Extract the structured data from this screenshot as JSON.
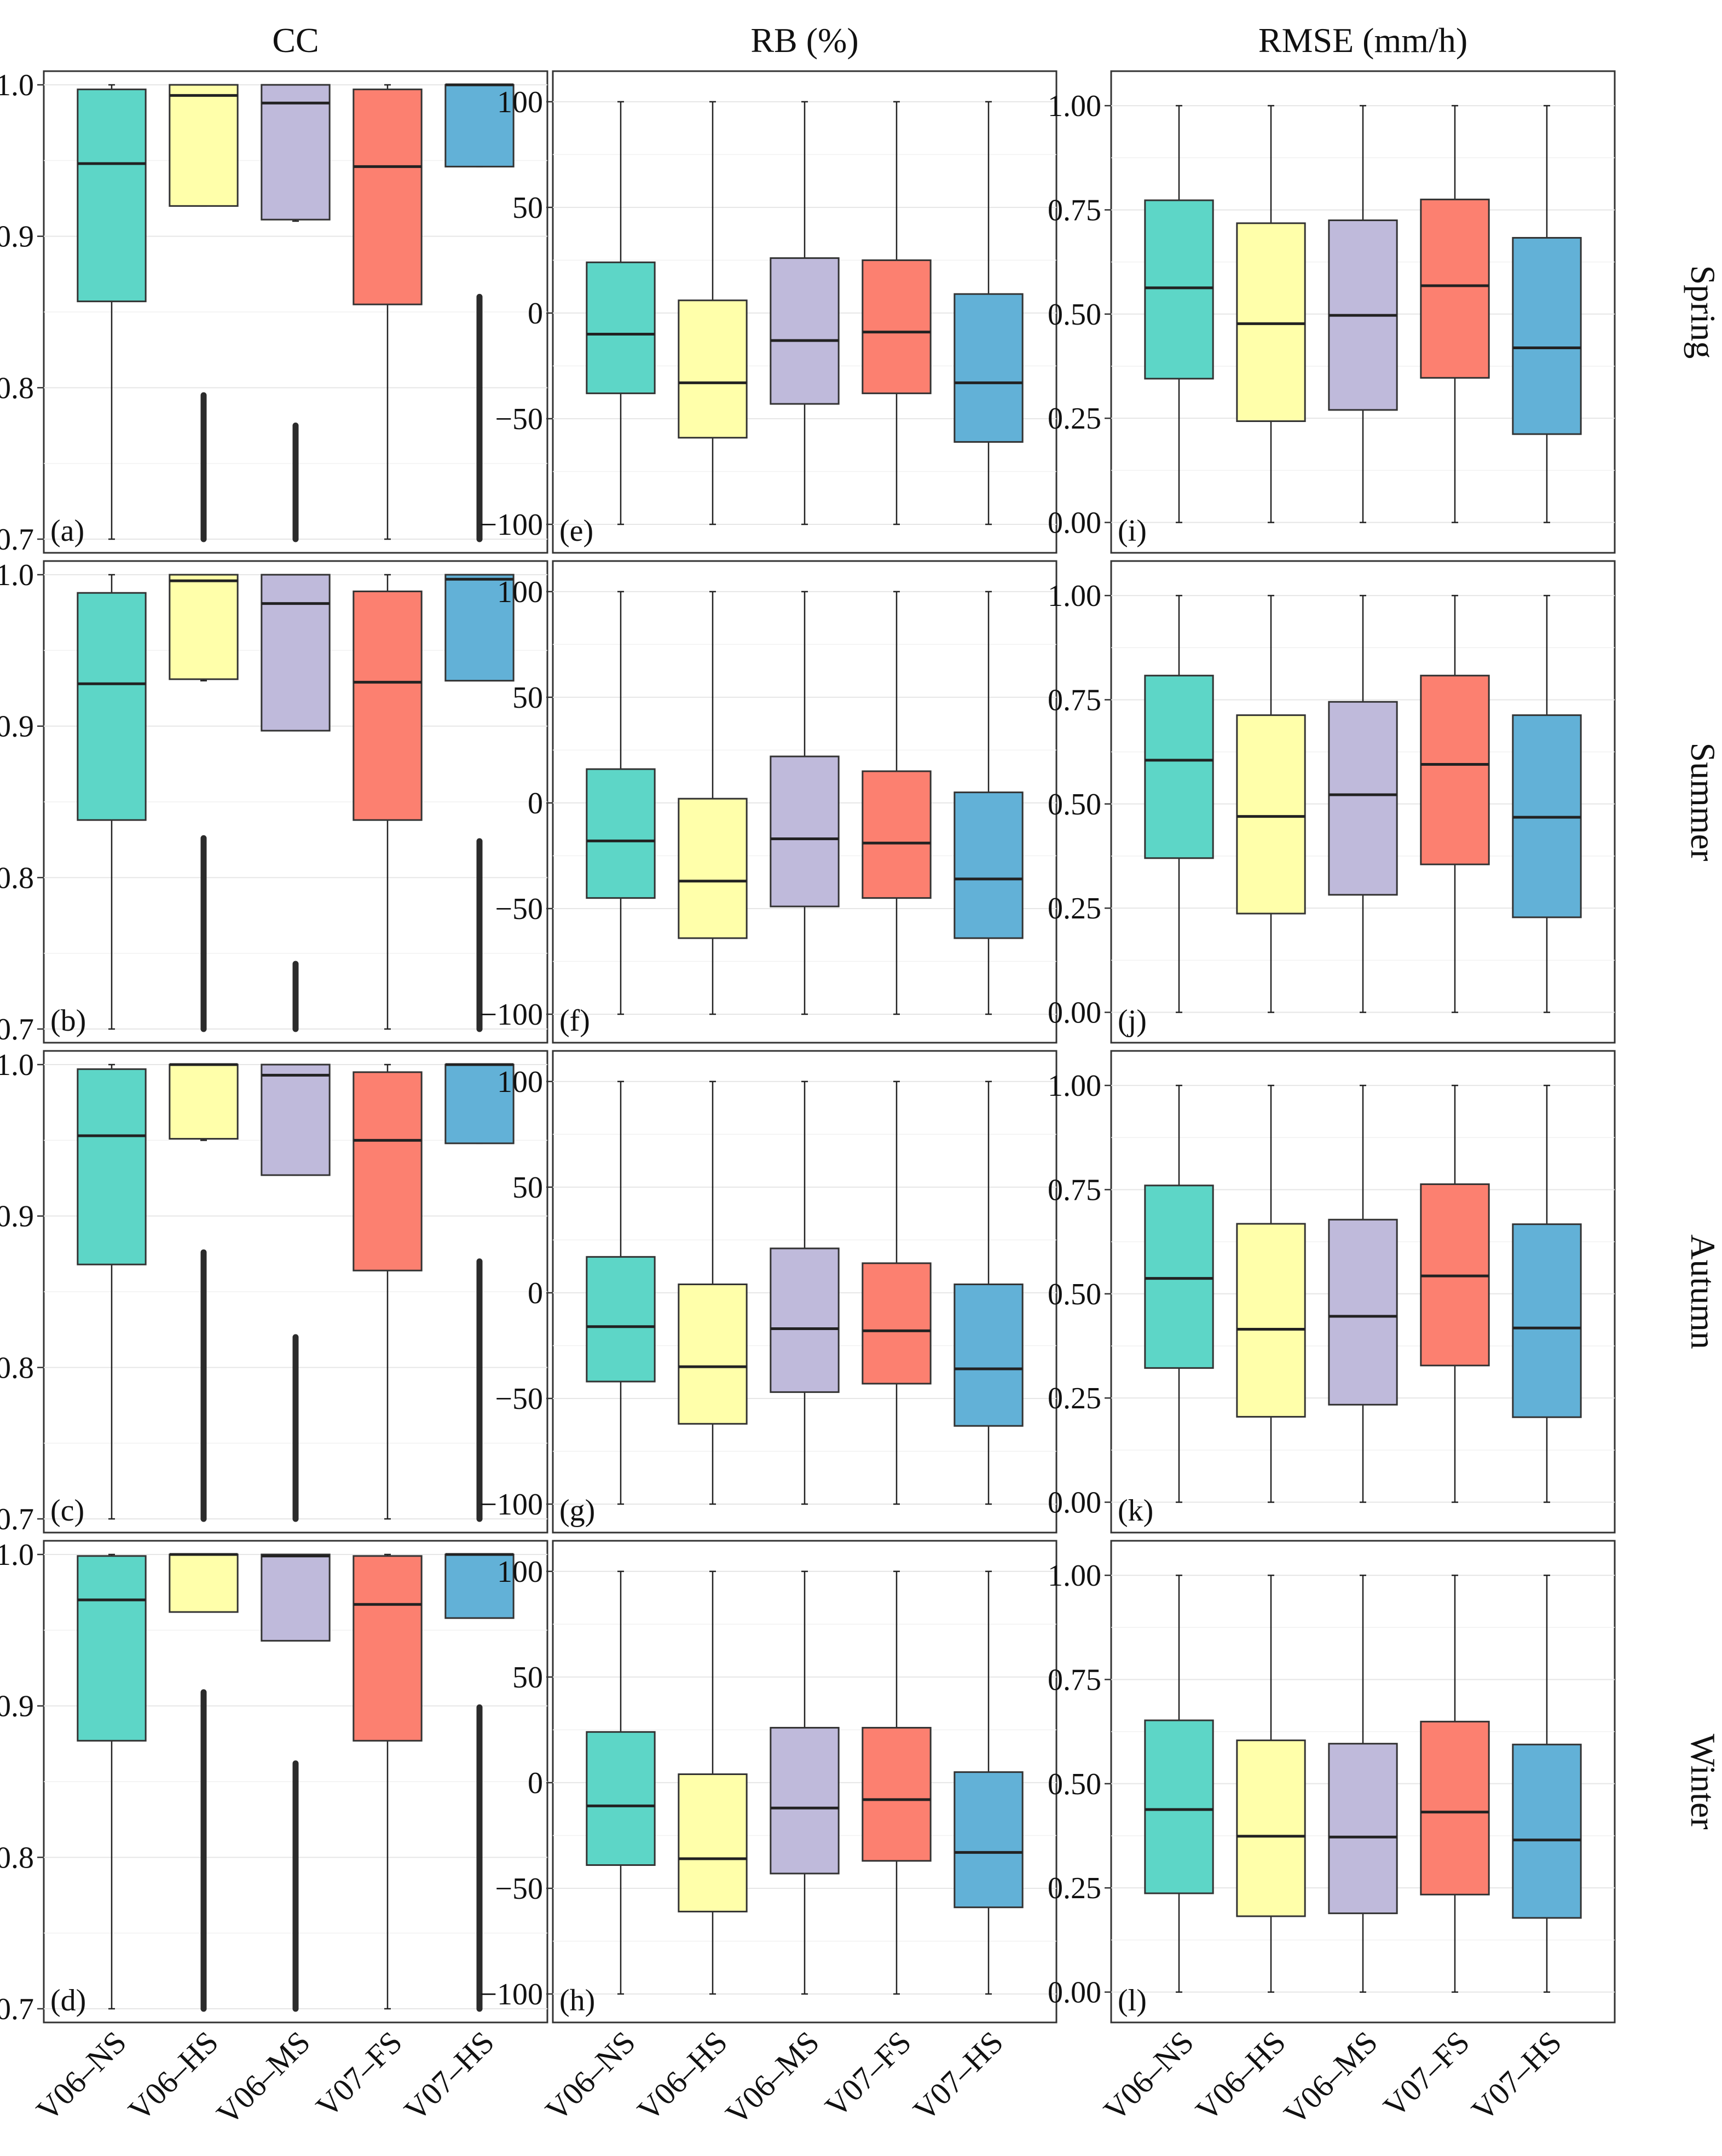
{
  "chart_data": {
    "type": "boxplot-grid",
    "categories": [
      "V06–NS",
      "V06–HS",
      "V06–MS",
      "V07–FS",
      "V07–HS"
    ],
    "category_colors": [
      "#5dd6c7",
      "#ffffaa",
      "#bfbadb",
      "#fc8070",
      "#62b1d7"
    ],
    "seasons": [
      "Spring",
      "Summer",
      "Autumn",
      "Winter"
    ],
    "metrics": [
      {
        "key": "CC",
        "title": "CC",
        "ylim": [
          0.7,
          1.0
        ],
        "ticks": [
          0.7,
          0.8,
          0.9,
          1.0
        ],
        "tick_labels": [
          "0.7",
          "0.8",
          "0.9",
          "1.0"
        ],
        "panels": [
          {
            "tag": "(a)",
            "season": "Spring",
            "boxes": [
              {
                "min": 0.7,
                "q1": 0.857,
                "median": 0.948,
                "q3": 0.997,
                "max": 1.0,
                "outlier_low": null
              },
              {
                "min": 0.92,
                "q1": 0.92,
                "median": 0.993,
                "q3": 1.0,
                "max": 1.0,
                "outlier_low": 0.7,
                "outlier_high": 0.795
              },
              {
                "min": 0.91,
                "q1": 0.911,
                "median": 0.988,
                "q3": 1.0,
                "max": 1.0,
                "outlier_low": 0.7,
                "outlier_high": 0.775
              },
              {
                "min": 0.7,
                "q1": 0.855,
                "median": 0.946,
                "q3": 0.997,
                "max": 1.0,
                "outlier_low": null
              },
              {
                "min": 0.946,
                "q1": 0.946,
                "median": 1.0,
                "q3": 1.0,
                "max": 1.0,
                "outlier_low": 0.7,
                "outlier_high": 0.86
              }
            ]
          },
          {
            "tag": "(b)",
            "season": "Summer",
            "boxes": [
              {
                "min": 0.7,
                "q1": 0.838,
                "median": 0.928,
                "q3": 0.988,
                "max": 1.0,
                "outlier_low": null
              },
              {
                "min": 0.93,
                "q1": 0.931,
                "median": 0.996,
                "q3": 1.0,
                "max": 1.0,
                "outlier_low": 0.7,
                "outlier_high": 0.826
              },
              {
                "min": 0.897,
                "q1": 0.897,
                "median": 0.981,
                "q3": 1.0,
                "max": 1.0,
                "outlier_low": 0.7,
                "outlier_high": 0.743
              },
              {
                "min": 0.7,
                "q1": 0.838,
                "median": 0.929,
                "q3": 0.989,
                "max": 1.0,
                "outlier_low": null
              },
              {
                "min": 0.93,
                "q1": 0.93,
                "median": 0.997,
                "q3": 1.0,
                "max": 1.0,
                "outlier_low": 0.7,
                "outlier_high": 0.824
              }
            ]
          },
          {
            "tag": "(c)",
            "season": "Autumn",
            "boxes": [
              {
                "min": 0.7,
                "q1": 0.868,
                "median": 0.953,
                "q3": 0.997,
                "max": 1.0,
                "outlier_low": null
              },
              {
                "min": 0.95,
                "q1": 0.951,
                "median": 1.0,
                "q3": 1.0,
                "max": 1.0,
                "outlier_low": 0.7,
                "outlier_high": 0.876
              },
              {
                "min": 0.927,
                "q1": 0.927,
                "median": 0.993,
                "q3": 1.0,
                "max": 1.0,
                "outlier_low": 0.7,
                "outlier_high": 0.82
              },
              {
                "min": 0.7,
                "q1": 0.864,
                "median": 0.95,
                "q3": 0.995,
                "max": 1.0,
                "outlier_low": null
              },
              {
                "min": 0.948,
                "q1": 0.948,
                "median": 1.0,
                "q3": 1.0,
                "max": 1.0,
                "outlier_low": 0.7,
                "outlier_high": 0.87
              }
            ]
          },
          {
            "tag": "(d)",
            "season": "Winter",
            "boxes": [
              {
                "min": 0.7,
                "q1": 0.877,
                "median": 0.97,
                "q3": 0.999,
                "max": 1.0,
                "outlier_low": null
              },
              {
                "min": 0.962,
                "q1": 0.962,
                "median": 1.0,
                "q3": 1.0,
                "max": 1.0,
                "outlier_low": 0.7,
                "outlier_high": 0.909
              },
              {
                "min": 0.943,
                "q1": 0.943,
                "median": 0.999,
                "q3": 1.0,
                "max": 1.0,
                "outlier_low": 0.7,
                "outlier_high": 0.862
              },
              {
                "min": 0.7,
                "q1": 0.877,
                "median": 0.967,
                "q3": 0.999,
                "max": 1.0,
                "outlier_low": null
              },
              {
                "min": 0.958,
                "q1": 0.958,
                "median": 1.0,
                "q3": 1.0,
                "max": 1.0,
                "outlier_low": 0.7,
                "outlier_high": 0.899
              }
            ]
          }
        ]
      },
      {
        "key": "RB",
        "title": "RB (%)",
        "ylim": [
          -107,
          108
        ],
        "ticks": [
          -100,
          -50,
          0,
          50,
          100
        ],
        "tick_labels": [
          "−100",
          "−50",
          "0",
          "50",
          "100"
        ],
        "panels": [
          {
            "tag": "(e)",
            "season": "Spring",
            "boxes": [
              {
                "min": -100,
                "q1": -38,
                "median": -10,
                "q3": 24,
                "max": 100
              },
              {
                "min": -100,
                "q1": -59,
                "median": -33,
                "q3": 6,
                "max": 100
              },
              {
                "min": -100,
                "q1": -43,
                "median": -13,
                "q3": 26,
                "max": 100
              },
              {
                "min": -100,
                "q1": -38,
                "median": -9,
                "q3": 25,
                "max": 100
              },
              {
                "min": -100,
                "q1": -61,
                "median": -33,
                "q3": 9,
                "max": 100
              }
            ]
          },
          {
            "tag": "(f)",
            "season": "Summer",
            "boxes": [
              {
                "min": -100,
                "q1": -45,
                "median": -18,
                "q3": 16,
                "max": 100
              },
              {
                "min": -100,
                "q1": -64,
                "median": -37,
                "q3": 2,
                "max": 100
              },
              {
                "min": -100,
                "q1": -49,
                "median": -17,
                "q3": 22,
                "max": 100
              },
              {
                "min": -100,
                "q1": -45,
                "median": -19,
                "q3": 15,
                "max": 100
              },
              {
                "min": -100,
                "q1": -64,
                "median": -36,
                "q3": 5,
                "max": 100
              }
            ]
          },
          {
            "tag": "(g)",
            "season": "Autumn",
            "boxes": [
              {
                "min": -100,
                "q1": -42,
                "median": -16,
                "q3": 17,
                "max": 100
              },
              {
                "min": -100,
                "q1": -62,
                "median": -35,
                "q3": 4,
                "max": 100
              },
              {
                "min": -100,
                "q1": -47,
                "median": -17,
                "q3": 21,
                "max": 100
              },
              {
                "min": -100,
                "q1": -43,
                "median": -18,
                "q3": 14,
                "max": 100
              },
              {
                "min": -100,
                "q1": -63,
                "median": -36,
                "q3": 4,
                "max": 100
              }
            ]
          },
          {
            "tag": "(h)",
            "season": "Winter",
            "boxes": [
              {
                "min": -100,
                "q1": -39,
                "median": -11,
                "q3": 24,
                "max": 100
              },
              {
                "min": -100,
                "q1": -61,
                "median": -36,
                "q3": 4,
                "max": 100
              },
              {
                "min": -100,
                "q1": -43,
                "median": -12,
                "q3": 26,
                "max": 100
              },
              {
                "min": -100,
                "q1": -37,
                "median": -8,
                "q3": 26,
                "max": 100
              },
              {
                "min": -100,
                "q1": -59,
                "median": -33,
                "q3": 5,
                "max": 100
              }
            ]
          }
        ]
      },
      {
        "key": "RMSE",
        "title": "RMSE (mm/h)",
        "ylim": [
          -0.04,
          1.05
        ],
        "ticks": [
          0.0,
          0.25,
          0.5,
          0.75,
          1.0
        ],
        "tick_labels": [
          "0.00",
          "0.25",
          "0.50",
          "0.75",
          "1.00"
        ],
        "panels": [
          {
            "tag": "(i)",
            "season": "Spring",
            "boxes": [
              {
                "min": 0.0,
                "q1": 0.345,
                "median": 0.563,
                "q3": 0.773,
                "max": 1.0
              },
              {
                "min": 0.0,
                "q1": 0.243,
                "median": 0.477,
                "q3": 0.718,
                "max": 1.0
              },
              {
                "min": 0.0,
                "q1": 0.27,
                "median": 0.497,
                "q3": 0.725,
                "max": 1.0
              },
              {
                "min": 0.0,
                "q1": 0.347,
                "median": 0.568,
                "q3": 0.775,
                "max": 1.0
              },
              {
                "min": 0.0,
                "q1": 0.212,
                "median": 0.419,
                "q3": 0.683,
                "max": 1.0
              }
            ]
          },
          {
            "tag": "(j)",
            "season": "Summer",
            "boxes": [
              {
                "min": 0.0,
                "q1": 0.37,
                "median": 0.605,
                "q3": 0.808,
                "max": 1.0
              },
              {
                "min": 0.0,
                "q1": 0.237,
                "median": 0.47,
                "q3": 0.713,
                "max": 1.0
              },
              {
                "min": 0.0,
                "q1": 0.282,
                "median": 0.522,
                "q3": 0.745,
                "max": 1.0
              },
              {
                "min": 0.0,
                "q1": 0.355,
                "median": 0.595,
                "q3": 0.808,
                "max": 1.0
              },
              {
                "min": 0.0,
                "q1": 0.228,
                "median": 0.468,
                "q3": 0.713,
                "max": 1.0
              }
            ]
          },
          {
            "tag": "(k)",
            "season": "Autumn",
            "boxes": [
              {
                "min": 0.0,
                "q1": 0.322,
                "median": 0.537,
                "q3": 0.76,
                "max": 1.0
              },
              {
                "min": 0.0,
                "q1": 0.205,
                "median": 0.415,
                "q3": 0.668,
                "max": 1.0
              },
              {
                "min": 0.0,
                "q1": 0.234,
                "median": 0.446,
                "q3": 0.678,
                "max": 1.0
              },
              {
                "min": 0.0,
                "q1": 0.328,
                "median": 0.543,
                "q3": 0.763,
                "max": 1.0
              },
              {
                "min": 0.0,
                "q1": 0.204,
                "median": 0.418,
                "q3": 0.667,
                "max": 1.0
              }
            ]
          },
          {
            "tag": "(l)",
            "season": "Winter",
            "boxes": [
              {
                "min": 0.0,
                "q1": 0.237,
                "median": 0.438,
                "q3": 0.652,
                "max": 1.0
              },
              {
                "min": 0.0,
                "q1": 0.182,
                "median": 0.374,
                "q3": 0.604,
                "max": 1.0
              },
              {
                "min": 0.0,
                "q1": 0.189,
                "median": 0.372,
                "q3": 0.596,
                "max": 1.0
              },
              {
                "min": 0.0,
                "q1": 0.234,
                "median": 0.432,
                "q3": 0.649,
                "max": 1.0
              },
              {
                "min": 0.0,
                "q1": 0.178,
                "median": 0.365,
                "q3": 0.594,
                "max": 1.0
              }
            ]
          }
        ]
      }
    ]
  }
}
